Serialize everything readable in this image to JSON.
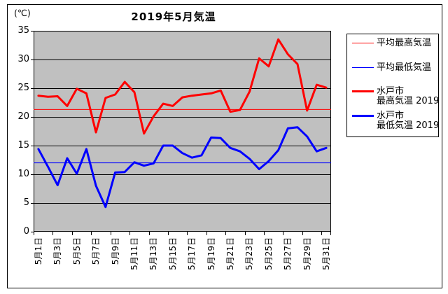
{
  "chart_data": {
    "type": "line",
    "title": "2019年5月気温",
    "y_unit": "(℃)",
    "ylim": [
      0,
      35
    ],
    "y_ticks": [
      35,
      30,
      25,
      20,
      15,
      10,
      5,
      0
    ],
    "x_tick_labels": [
      "5月1日",
      "5月3日",
      "5月5日",
      "5月7日",
      "5月9日",
      "5月11日",
      "5月13日",
      "5月15日",
      "5月17日",
      "5月19日",
      "5月21日",
      "5月23日",
      "5月25日",
      "5月27日",
      "5月29日",
      "5月31日"
    ],
    "x_days": 31,
    "grid": true,
    "plot_bg": "#c0c0c0",
    "grid_color": "#000000",
    "legend_position": "right",
    "series": [
      {
        "name": "平均最高気温",
        "kind": "constant",
        "value": 21.3,
        "color": "#ff0000",
        "width": 1
      },
      {
        "name": "平均最低気温",
        "kind": "constant",
        "value": 12.0,
        "color": "#0000ff",
        "width": 1
      },
      {
        "name": "水戸市 最高気温 2019",
        "kind": "data",
        "color": "#ff0000",
        "width": 3,
        "values": [
          23.7,
          23.5,
          23.6,
          21.9,
          24.9,
          24.1,
          17.3,
          23.3,
          23.9,
          26.1,
          24.3,
          17.1,
          20.1,
          22.3,
          21.9,
          23.4,
          23.7,
          23.9,
          24.1,
          24.6,
          20.9,
          21.2,
          24.4,
          30.2,
          28.8,
          33.5,
          30.9,
          29.2,
          21.1,
          25.6,
          25.1
        ]
      },
      {
        "name": "水戸市 最低気温 2019",
        "kind": "data",
        "color": "#0000ff",
        "width": 3,
        "values": [
          14.4,
          11.3,
          8.1,
          12.8,
          10.1,
          14.4,
          8.0,
          4.3,
          10.3,
          10.4,
          12.1,
          11.5,
          11.9,
          15.0,
          15.0,
          13.7,
          12.9,
          13.3,
          16.4,
          16.3,
          14.6,
          14.0,
          12.7,
          10.9,
          12.3,
          14.2,
          18.0,
          18.2,
          16.6,
          14.0,
          14.6
        ]
      }
    ]
  },
  "legend": {
    "items": [
      {
        "lines": [
          "平均最高気温"
        ],
        "color": "#ff0000",
        "thick": false
      },
      {
        "lines": [
          "平均最低気温"
        ],
        "color": "#0000ff",
        "thick": false
      },
      {
        "lines": [
          "水戸市",
          "最高気温 2019"
        ],
        "color": "#ff0000",
        "thick": true
      },
      {
        "lines": [
          "水戸市",
          "最低気温 2019"
        ],
        "color": "#0000ff",
        "thick": true
      }
    ]
  }
}
